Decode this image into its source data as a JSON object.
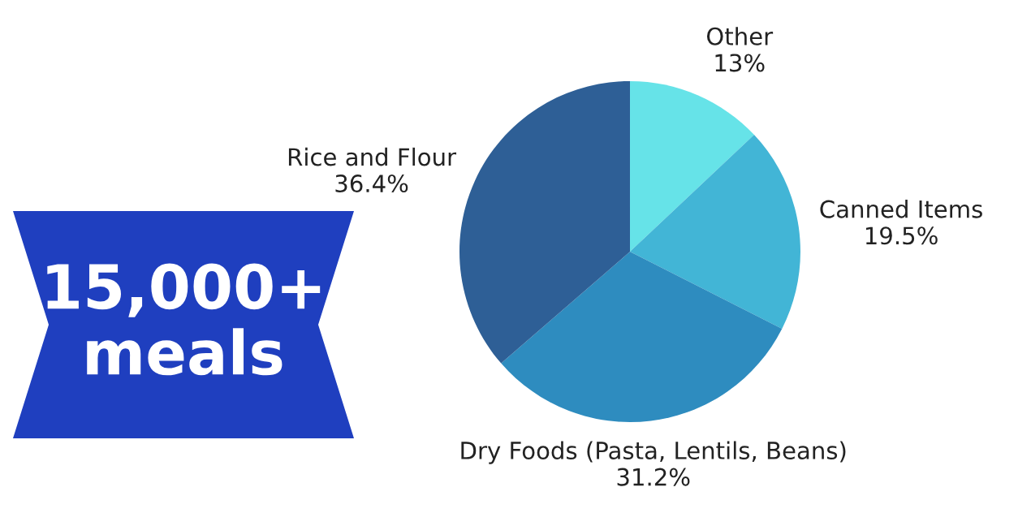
{
  "chart_data": {
    "type": "pie",
    "categories": [
      "Other",
      "Canned Items",
      "Dry Foods (Pasta, Lentils, Beans)",
      "Rice and Flour"
    ],
    "values": [
      13,
      19.5,
      31.2,
      36.4
    ],
    "value_labels": [
      "13%",
      "19.5%",
      "31.2%",
      "36.4%"
    ],
    "colors": [
      "#66e3e8",
      "#42b5d6",
      "#2e8cbf",
      "#2e5f96"
    ],
    "annotations": [
      "15,000+\nmeals"
    ]
  }
}
